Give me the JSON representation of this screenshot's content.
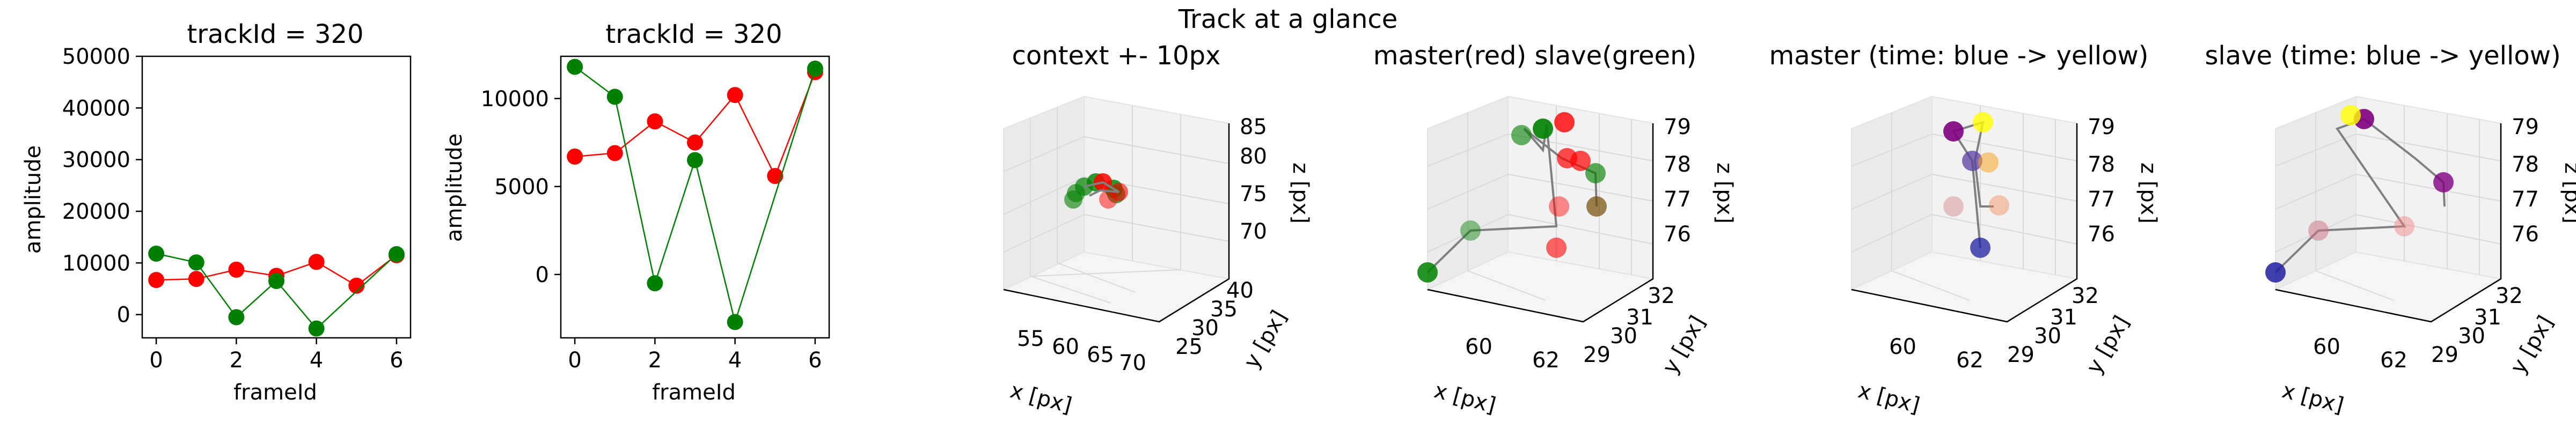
{
  "figure": {
    "suptitle": "Track at a glance"
  },
  "chart_data": [
    {
      "type": "line",
      "title": "trackId = 320",
      "xlabel": "frameId",
      "ylabel": "amplitude",
      "xlim": [
        -0.35,
        6.35
      ],
      "ylim": [
        -4500,
        50000
      ],
      "xticks": [
        0,
        2,
        4,
        6
      ],
      "yticks": [
        0,
        10000,
        20000,
        30000,
        40000,
        50000
      ],
      "series": [
        {
          "color": "#ff0000",
          "x": [
            0,
            1,
            2,
            3,
            4,
            5,
            6
          ],
          "y": [
            6700,
            6900,
            8700,
            7500,
            10200,
            5600,
            11500
          ]
        },
        {
          "color": "#008000",
          "x": [
            0,
            1,
            2,
            3,
            4,
            6
          ],
          "y": [
            11800,
            10100,
            -500,
            6500,
            -2700,
            11700
          ]
        }
      ]
    },
    {
      "type": "line",
      "title": "trackId = 320",
      "xlabel": "frameId",
      "ylabel": "amplitude",
      "xlim": [
        -0.35,
        6.35
      ],
      "ylim": [
        -3600,
        12400
      ],
      "xticks": [
        0,
        2,
        4,
        6
      ],
      "yticks": [
        0,
        5000,
        10000
      ],
      "series": [
        {
          "color": "#ff0000",
          "x": [
            0,
            1,
            2,
            3,
            4,
            5,
            6
          ],
          "y": [
            6700,
            6900,
            8700,
            7500,
            10200,
            5600,
            11500
          ]
        },
        {
          "color": "#008000",
          "x": [
            0,
            1,
            2,
            3,
            4,
            6
          ],
          "y": [
            11800,
            10100,
            -500,
            6500,
            -2700,
            11700
          ]
        }
      ]
    },
    {
      "type": "scatter",
      "title": "context +- 10px",
      "xlabel": "x [px]",
      "ylabel": "y [px]",
      "zlabel": "z [px]",
      "xticks": [
        "55",
        "60",
        "65",
        "70"
      ],
      "yticks": [
        "25",
        "30",
        "35",
        "40"
      ],
      "zticks": [
        "70",
        "75",
        "80",
        "85"
      ]
    },
    {
      "type": "scatter",
      "title": "master(red) slave(green)",
      "xlabel": "x [px]",
      "ylabel": "y [px]",
      "zlabel": "z [px]",
      "xticks": [
        "60",
        "62"
      ],
      "yticks": [
        "29",
        "30",
        "31",
        "32"
      ],
      "zticks": [
        "76",
        "77",
        "78",
        "79"
      ]
    },
    {
      "type": "scatter",
      "title": "master (time: blue -> yellow)",
      "xlabel": "x [px]",
      "ylabel": "y [px]",
      "zlabel": "z [px]",
      "xticks": [
        "60",
        "62"
      ],
      "yticks": [
        "29",
        "30",
        "31",
        "32"
      ],
      "zticks": [
        "76",
        "77",
        "78",
        "79"
      ]
    },
    {
      "type": "scatter",
      "title": "slave (time: blue -> yellow)",
      "xlabel": "x [px]",
      "ylabel": "y [px]",
      "zlabel": "z [px]",
      "xticks": [
        "60",
        "62"
      ],
      "yticks": [
        "29",
        "30",
        "31",
        "32"
      ],
      "zticks": [
        "76",
        "77",
        "78",
        "79"
      ]
    }
  ]
}
